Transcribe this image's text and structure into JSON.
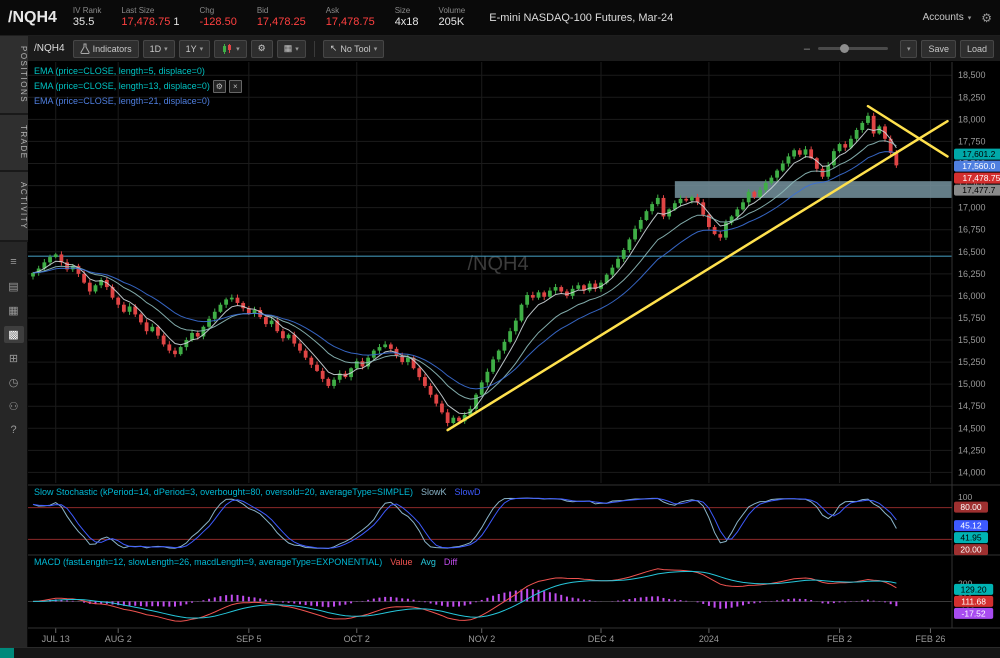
{
  "header": {
    "symbol": "/NQH4",
    "fields": [
      {
        "label": "IV Rank",
        "value": "35.5",
        "extra": "",
        "color": "#e6e6e6"
      },
      {
        "label": "Last Size",
        "value": "17,478.75",
        "extra": "1",
        "color": "#ff4040"
      },
      {
        "label": "Chg",
        "value": "-128.50",
        "extra": "",
        "color": "#ff4040"
      },
      {
        "label": "Bid",
        "value": "17,478.25",
        "extra": "",
        "color": "#ff4040"
      },
      {
        "label": "Ask",
        "value": "17,478.75",
        "extra": "",
        "color": "#ff4040"
      },
      {
        "label": "Size",
        "value": "4x18",
        "extra": "",
        "color": "#e6e6e6"
      },
      {
        "label": "Volume",
        "value": "205K",
        "extra": "",
        "color": "#e6e6e6"
      }
    ],
    "description": "E-mini NASDAQ-100 Futures, Mar-24",
    "accounts_label": "Accounts"
  },
  "sidebar": {
    "tabs": [
      {
        "label": "POSITIONS"
      },
      {
        "label": "TRADE"
      },
      {
        "label": "ACTIVITY"
      }
    ],
    "icons": [
      {
        "name": "menu-icon",
        "glyph": "≡"
      },
      {
        "name": "watchlist-icon",
        "glyph": "▤"
      },
      {
        "name": "grid-icon",
        "glyph": "▦"
      },
      {
        "name": "flexible-grid-icon",
        "glyph": "▩"
      },
      {
        "name": "apps-icon",
        "glyph": "⊞"
      },
      {
        "name": "clock-icon",
        "glyph": "◷"
      },
      {
        "name": "community-icon",
        "glyph": "⚇"
      },
      {
        "name": "help-icon",
        "glyph": "?"
      }
    ]
  },
  "toolbar": {
    "symbol_label": "/NQH4",
    "indicators_label": "Indicators",
    "aggregation": "1D",
    "range": "1Y",
    "tool_label": "No Tool",
    "save_label": "Save",
    "load_label": "Load"
  },
  "legend": {
    "rows": [
      {
        "text": "EMA (price=CLOSE, length=5, displace=0)",
        "color": "#00c2c2"
      },
      {
        "text": "EMA (price=CLOSE, length=13, displace=0)",
        "color": "#00c2c2"
      },
      {
        "text": "EMA (price=CLOSE, length=21, displace=0)",
        "color": "#4f7fe0"
      }
    ]
  },
  "watermark": "/NQH4",
  "price_bubbles": [
    {
      "label": "17,601.2",
      "price": 17601.2,
      "bg": "#00a8a8",
      "fg": "#000"
    },
    {
      "label": "17,560.0",
      "price": 17560.0,
      "bg": "#4f7fe0",
      "fg": "#fff"
    },
    {
      "label": "17,478.75",
      "price": 17478.75,
      "bg": "#d32f2f",
      "fg": "#fff"
    },
    {
      "label": "17,477.7",
      "price": 17477.7,
      "bg": "#8a8a8a",
      "fg": "#000"
    }
  ],
  "stoch": {
    "title": "Slow Stochastic (kPeriod=14, dPeriod=3, overbought=80, oversold=20, averageType=SIMPLE)",
    "title_color": "#00b8d4",
    "plots": [
      {
        "name": "SlowK",
        "color": "#8ab4c8"
      },
      {
        "name": "SlowD",
        "color": "#3d5afe"
      }
    ],
    "scale": [
      "100",
      "50",
      "0"
    ],
    "overbought": 80,
    "oversold": 20,
    "bubbles": [
      {
        "label": "80.00",
        "value": 80,
        "bg": "#9e3030",
        "fg": "#fff"
      },
      {
        "label": "45.12",
        "value": 45.12,
        "bg": "#3d5afe",
        "fg": "#fff"
      },
      {
        "label": "41.95",
        "value": 41.95,
        "bg": "#00b3b3",
        "fg": "#000"
      },
      {
        "label": "20.00",
        "value": 20,
        "bg": "#9e3030",
        "fg": "#fff"
      }
    ]
  },
  "macd": {
    "title": "MACD (fastLength=12, slowLength=26, macdLength=9, averageType=EXPONENTIAL)",
    "title_color": "#00b8d4",
    "plots": [
      {
        "name": "Value",
        "color": "#ef5350"
      },
      {
        "name": "Avg",
        "color": "#26c6da"
      },
      {
        "name": "Diff",
        "color": "#c24df0"
      }
    ],
    "scale": [
      "200",
      "100",
      "0",
      "-100"
    ],
    "bubbles": [
      {
        "label": "111.68",
        "value": 111.68,
        "bg": "#d32f2f",
        "fg": "#fff"
      },
      {
        "label": "129.20",
        "value": 129.2,
        "bg": "#00b3b3",
        "fg": "#000"
      },
      {
        "label": "-17.52",
        "value": -17.52,
        "bg": "#a84cf0",
        "fg": "#fff"
      }
    ]
  },
  "chart_data": {
    "type": "candlestick",
    "title": "/NQH4 1D 1Y — E-mini NASDAQ-100 Futures, Mar-24",
    "colors": {
      "up": "#3fae46",
      "down": "#e04545"
    },
    "y_axis": {
      "min": 13880,
      "max": 18650,
      "ticks": [
        "18,500",
        "18,250",
        "18,000",
        "17,750",
        "17,500",
        "17,250",
        "17,000",
        "16,750",
        "16,500",
        "16,250",
        "16,000",
        "15,750",
        "15,500",
        "15,250",
        "15,000",
        "14,750",
        "14,500",
        "14,250",
        "14,000"
      ]
    },
    "x_ticks": [
      {
        "label": "JUL 13",
        "bar": 4
      },
      {
        "label": "AUG 2",
        "bar": 15
      },
      {
        "label": "SEP 5",
        "bar": 38
      },
      {
        "label": "OCT 2",
        "bar": 57
      },
      {
        "label": "NOV 2",
        "bar": 79
      },
      {
        "label": "DEC 4",
        "bar": 100
      },
      {
        "label": "2024",
        "bar": 119
      },
      {
        "label": "FEB 2",
        "bar": 142
      },
      {
        "label": "FEB 26",
        "bar": 158
      }
    ],
    "closes": [
      16260,
      16310,
      16380,
      16440,
      16470,
      16380,
      16300,
      16340,
      16250,
      16150,
      16050,
      16120,
      16180,
      16100,
      15980,
      15900,
      15820,
      15880,
      15790,
      15700,
      15600,
      15650,
      15550,
      15450,
      15380,
      15340,
      15420,
      15500,
      15580,
      15540,
      15650,
      15740,
      15820,
      15900,
      15960,
      15980,
      15920,
      15860,
      15800,
      15840,
      15760,
      15680,
      15720,
      15600,
      15520,
      15560,
      15460,
      15380,
      15300,
      15220,
      15150,
      15060,
      14980,
      15050,
      15120,
      15080,
      15180,
      15260,
      15200,
      15300,
      15380,
      15420,
      15450,
      15400,
      15320,
      15250,
      15300,
      15180,
      15080,
      14980,
      14880,
      14780,
      14680,
      14560,
      14620,
      14580,
      14650,
      14720,
      14880,
      15020,
      15140,
      15280,
      15380,
      15480,
      15600,
      15720,
      15900,
      16010,
      15980,
      16040,
      15990,
      16060,
      16100,
      16050,
      16000,
      16080,
      16120,
      16060,
      16140,
      16080,
      16150,
      16240,
      16320,
      16420,
      16520,
      16640,
      16760,
      16860,
      16960,
      17040,
      17110,
      16900,
      16980,
      17050,
      17100,
      17080,
      17120,
      17060,
      16920,
      16780,
      16700,
      16660,
      16830,
      16900,
      16980,
      17060,
      17180,
      17120,
      17200,
      17280,
      17340,
      17420,
      17500,
      17580,
      17650,
      17600,
      17660,
      17560,
      17440,
      17350,
      17480,
      17640,
      17720,
      17680,
      17780,
      17880,
      17960,
      18040,
      17840,
      17920,
      17780,
      17620,
      17478.75
    ],
    "overlays": {
      "emas": [
        {
          "length": 5,
          "color": "#cfd8dc"
        },
        {
          "length": 13,
          "color": "#8fbcbb"
        },
        {
          "length": 21,
          "color": "#3b6fd6"
        }
      ],
      "horizontal_line": {
        "price": 16450,
        "color": "#3f8fb0"
      },
      "zone": {
        "from_bar": 113,
        "price_top": 17300,
        "price_bottom": 17110,
        "color": "#76939f"
      },
      "trendlines": [
        {
          "from": {
            "bar": 73,
            "price": 14480
          },
          "to": {
            "bar": 161,
            "price": 17980
          },
          "color": "#ffe14d"
        },
        {
          "from": {
            "bar": 147,
            "price": 18150
          },
          "to": {
            "bar": 161,
            "price": 17580
          },
          "color": "#ffe14d"
        }
      ]
    }
  }
}
